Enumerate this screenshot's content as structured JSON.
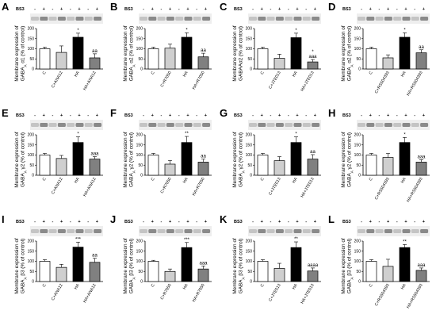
{
  "chart_data": [
    {
      "panel": "A",
      "type": "bar",
      "title": "",
      "ylabel": "Membrane expression of GABAA α1 (% of control)",
      "ylabel_parts": [
        "Membrane expression of",
        "GABA",
        "A",
        "α1 (% of control)"
      ],
      "categories": [
        "C",
        "C+ANA12",
        "HA",
        "HA+ANA12"
      ],
      "values": [
        100,
        82,
        157,
        55
      ],
      "errors": [
        8,
        32,
        20,
        20
      ],
      "sig": [
        "",
        "",
        "*",
        "aa"
      ],
      "ylim": [
        0,
        200
      ],
      "yticks": [
        0,
        50,
        100,
        150,
        200
      ],
      "blot_label": "BS3",
      "bs3": [
        "-",
        "+",
        "-",
        "+",
        "-",
        "+",
        "-",
        "+"
      ]
    },
    {
      "panel": "B",
      "type": "bar",
      "title": "",
      "ylabel": "Membrane expression of GABAA α2 (% of control)",
      "ylabel_parts": [
        "Membrane expression of",
        "GABA",
        "A",
        "α2 (% of control)"
      ],
      "categories": [
        "C",
        "C+R7050",
        "HA",
        "HA+R7050"
      ],
      "values": [
        100,
        103,
        157,
        60
      ],
      "errors": [
        8,
        20,
        22,
        18
      ],
      "sig": [
        "",
        "",
        "*",
        "aa"
      ],
      "ylim": [
        0,
        200
      ],
      "yticks": [
        0,
        50,
        100,
        150,
        200
      ],
      "blot_label": "BS3",
      "bs3": [
        "-",
        "+",
        "-",
        "+",
        "-",
        "+",
        "-",
        "+"
      ]
    },
    {
      "panel": "C",
      "type": "bar",
      "title": "",
      "ylabel": "Membrane expression of GABAAα2 (% of control)",
      "ylabel_parts": [
        "Membrane expression of",
        "GABAAα2 (% of control)",
        "",
        ""
      ],
      "categories": [
        "C",
        "C+JTE013",
        "HA",
        "HA+JTE013"
      ],
      "values": [
        100,
        53,
        155,
        35
      ],
      "errors": [
        8,
        20,
        22,
        12
      ],
      "sig": [
        "",
        "",
        "*",
        "*\naaa"
      ],
      "ylim": [
        0,
        200
      ],
      "yticks": [
        0,
        50,
        100,
        150,
        200
      ],
      "blot_label": "BS3",
      "bs3": [
        "-",
        "+",
        "-",
        "+",
        "-",
        "+",
        "-",
        "+"
      ]
    },
    {
      "panel": "D",
      "type": "bar",
      "title": "",
      "ylabel": "Membrane expression of GABAAα2 (% of control)",
      "ylabel_parts": [
        "Membrane expression of",
        "GABA",
        "A",
        "α2 (% of control)"
      ],
      "categories": [
        "C",
        "C+RS504393",
        "HA",
        "HA+RS504393"
      ],
      "values": [
        100,
        55,
        157,
        80
      ],
      "errors": [
        8,
        15,
        22,
        15
      ],
      "sig": [
        "",
        "",
        "*",
        "aa"
      ],
      "ylim": [
        0,
        200
      ],
      "yticks": [
        0,
        50,
        100,
        150,
        200
      ],
      "blot_label": "BS3",
      "bs3": [
        "-",
        "+",
        "-",
        "+",
        "-",
        "+",
        "-",
        "+"
      ]
    },
    {
      "panel": "E",
      "type": "bar",
      "title": "",
      "ylabel": "Membrane expression of GABAA γ2 (% of control)",
      "ylabel_parts": [
        "Membrane expression of",
        "GABA",
        "A",
        "γ2 (% of control)"
      ],
      "categories": [
        "C",
        "C+ANA12",
        "HA",
        "HA+ANA12"
      ],
      "values": [
        100,
        83,
        162,
        80
      ],
      "errors": [
        8,
        15,
        28,
        12
      ],
      "sig": [
        "",
        "",
        "*",
        "aaa"
      ],
      "ylim": [
        0,
        200
      ],
      "yticks": [
        0,
        50,
        100,
        150,
        200
      ],
      "blot_label": "BS3",
      "bs3": [
        "-",
        "+",
        "-",
        "+",
        "-",
        "+",
        "-",
        "+"
      ]
    },
    {
      "panel": "F",
      "type": "bar",
      "title": "",
      "ylabel": "Membrane expression of GABAA γ2 (% of control)",
      "ylabel_parts": [
        "Membrane expression of",
        "GABA",
        "A",
        "γ2 (% of control)"
      ],
      "categories": [
        "C",
        "C+R7050",
        "HA",
        "HA+R7050"
      ],
      "values": [
        100,
        55,
        162,
        65
      ],
      "errors": [
        8,
        18,
        30,
        15
      ],
      "sig": [
        "",
        "",
        "**",
        "aa"
      ],
      "ylim": [
        0,
        200
      ],
      "yticks": [
        0,
        50,
        100,
        150,
        200
      ],
      "blot_label": "BS3",
      "bs3": [
        "-",
        "+",
        "-",
        "+",
        "-",
        "+",
        "-",
        "+"
      ]
    },
    {
      "panel": "G",
      "type": "bar",
      "title": "",
      "ylabel": "Membrane expression of GABAA γ2 (% of control)",
      "ylabel_parts": [
        "Membrane expression of",
        "GABA",
        "A",
        "γ2 (% of control)"
      ],
      "categories": [
        "C",
        "C+JTE013",
        "HA",
        "HA+JTE013"
      ],
      "values": [
        100,
        72,
        162,
        80
      ],
      "errors": [
        8,
        20,
        28,
        22
      ],
      "sig": [
        "",
        "",
        "*",
        "aa"
      ],
      "ylim": [
        0,
        200
      ],
      "yticks": [
        0,
        50,
        100,
        150,
        200
      ],
      "blot_label": "BS3",
      "bs3": [
        "-",
        "+",
        "-",
        "+",
        "-",
        "+",
        "-",
        "+"
      ]
    },
    {
      "panel": "H",
      "type": "bar",
      "title": "",
      "ylabel": "Membrane expression of GABAA γ2 (% of control)",
      "ylabel_parts": [
        "Membrane expression of",
        "GABA",
        "A",
        "γ2 (% of control)"
      ],
      "categories": [
        "C",
        "C+RS504393",
        "HA",
        "HA+RS504393"
      ],
      "values": [
        100,
        88,
        162,
        65
      ],
      "errors": [
        8,
        20,
        25,
        12
      ],
      "sig": [
        "",
        "",
        "*",
        "aaa"
      ],
      "ylim": [
        0,
        200
      ],
      "yticks": [
        0,
        50,
        100,
        150,
        200
      ],
      "blot_label": "BS3",
      "bs3": [
        "-",
        "+",
        "-",
        "+",
        "-",
        "+",
        "-",
        "+"
      ]
    },
    {
      "panel": "I",
      "type": "bar",
      "title": "",
      "ylabel": "Membrane expression of GABAA β3 (% of control)",
      "ylabel_parts": [
        "Membrane expression of",
        "GABA",
        "A",
        "β3 (% of control)"
      ],
      "categories": [
        "C",
        "C+ANA12",
        "HA",
        "HA+ANA12"
      ],
      "values": [
        100,
        70,
        170,
        95
      ],
      "errors": [
        8,
        15,
        25,
        20
      ],
      "sig": [
        "",
        "",
        "***",
        "aa"
      ],
      "ylim": [
        0,
        200
      ],
      "yticks": [
        0,
        50,
        100,
        150,
        200
      ],
      "blot_label": "BS3",
      "bs3": [
        "-",
        "+",
        "-",
        "+",
        "-",
        "+",
        "-",
        "+"
      ]
    },
    {
      "panel": "J",
      "type": "bar",
      "title": "",
      "ylabel": "Membrane expression of GABAA β3 (% of control)",
      "ylabel_parts": [
        "Membrane expression of",
        "GABA",
        "A",
        "β3 (% of control)"
      ],
      "categories": [
        "C",
        "C+R7050",
        "HA",
        "HA+R7050"
      ],
      "values": [
        100,
        50,
        168,
        62
      ],
      "errors": [
        5,
        12,
        25,
        15
      ],
      "sig": [
        "",
        "",
        "***",
        "aaa"
      ],
      "ylim": [
        0,
        200
      ],
      "yticks": [
        0,
        50,
        100,
        150,
        200
      ],
      "blot_label": "BS3",
      "bs3": [
        "-",
        "+",
        "-",
        "+",
        "-",
        "+",
        "-",
        "+"
      ]
    },
    {
      "panel": "K",
      "type": "bar",
      "title": "",
      "ylabel": "Membrane expression of GABAA β3 (% of control)",
      "ylabel_parts": [
        "Membrane expression of",
        "GABA",
        "A",
        "β3 (% of control)"
      ],
      "categories": [
        "C",
        "C+JTE013",
        "HA",
        "HA+JTE013"
      ],
      "values": [
        100,
        65,
        168,
        52
      ],
      "errors": [
        8,
        25,
        28,
        15
      ],
      "sig": [
        "",
        "",
        "**",
        "aaaa"
      ],
      "ylim": [
        0,
        200
      ],
      "yticks": [
        0,
        50,
        100,
        150,
        200
      ],
      "blot_label": "BS3",
      "bs3": [
        "-",
        "+",
        "-",
        "+",
        "-",
        "+",
        "-",
        "+"
      ]
    },
    {
      "panel": "L",
      "type": "bar",
      "title": "",
      "ylabel": "Membrane expression of GABAA β3 (% of control)",
      "ylabel_parts": [
        "Membrane expression of",
        "GABA",
        "A",
        "β3 (% of control)"
      ],
      "categories": [
        "C",
        "C+RS504393",
        "HA",
        "HA+RS504393"
      ],
      "values": [
        100,
        75,
        168,
        55
      ],
      "errors": [
        8,
        35,
        15,
        12
      ],
      "sig": [
        "",
        "",
        "**",
        "aaa"
      ],
      "ylim": [
        0,
        200
      ],
      "yticks": [
        0,
        50,
        100,
        150,
        200
      ],
      "blot_label": "BS3",
      "bs3": [
        "-",
        "+",
        "-",
        "+",
        "-",
        "+",
        "-",
        "+"
      ]
    }
  ],
  "bar_colors": [
    "#ffffff",
    "#cfcfcf",
    "#000000",
    "#808080"
  ]
}
